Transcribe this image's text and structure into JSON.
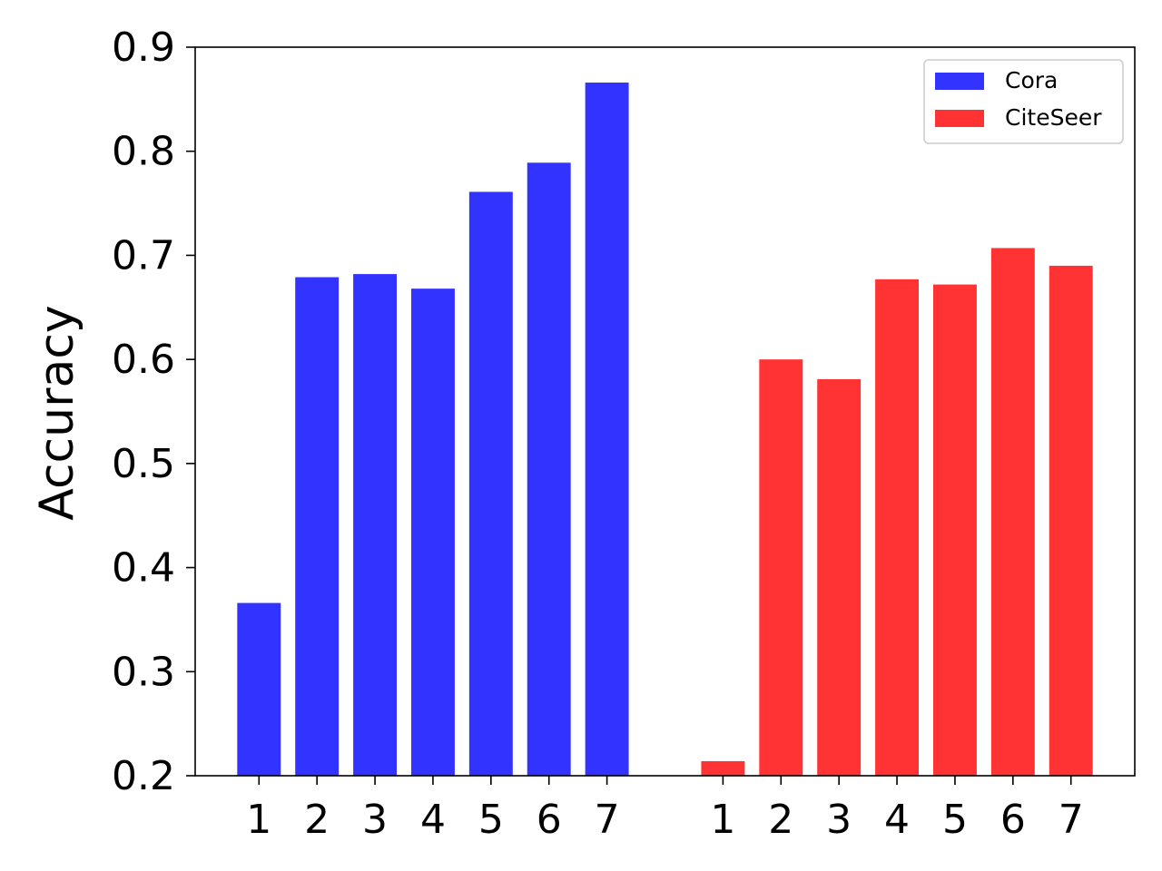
{
  "chart_data": {
    "type": "bar",
    "title": "",
    "xlabel": "",
    "ylabel": "Accuracy",
    "ylim": [
      0.2,
      0.9
    ],
    "yticks": [
      "0.2",
      "0.3",
      "0.4",
      "0.5",
      "0.6",
      "0.7",
      "0.8",
      "0.9"
    ],
    "grid": false,
    "legend_position": "top-right",
    "series": [
      {
        "name": "Cora",
        "color": "#3333ff",
        "categories": [
          "1",
          "2",
          "3",
          "4",
          "5",
          "6",
          "7"
        ],
        "values": [
          0.366,
          0.679,
          0.682,
          0.668,
          0.761,
          0.789,
          0.866
        ]
      },
      {
        "name": "CiteSeer",
        "color": "#ff3333",
        "categories": [
          "1",
          "2",
          "3",
          "4",
          "5",
          "6",
          "7"
        ],
        "values": [
          0.214,
          0.6,
          0.581,
          0.677,
          0.672,
          0.707,
          0.69
        ]
      }
    ]
  }
}
